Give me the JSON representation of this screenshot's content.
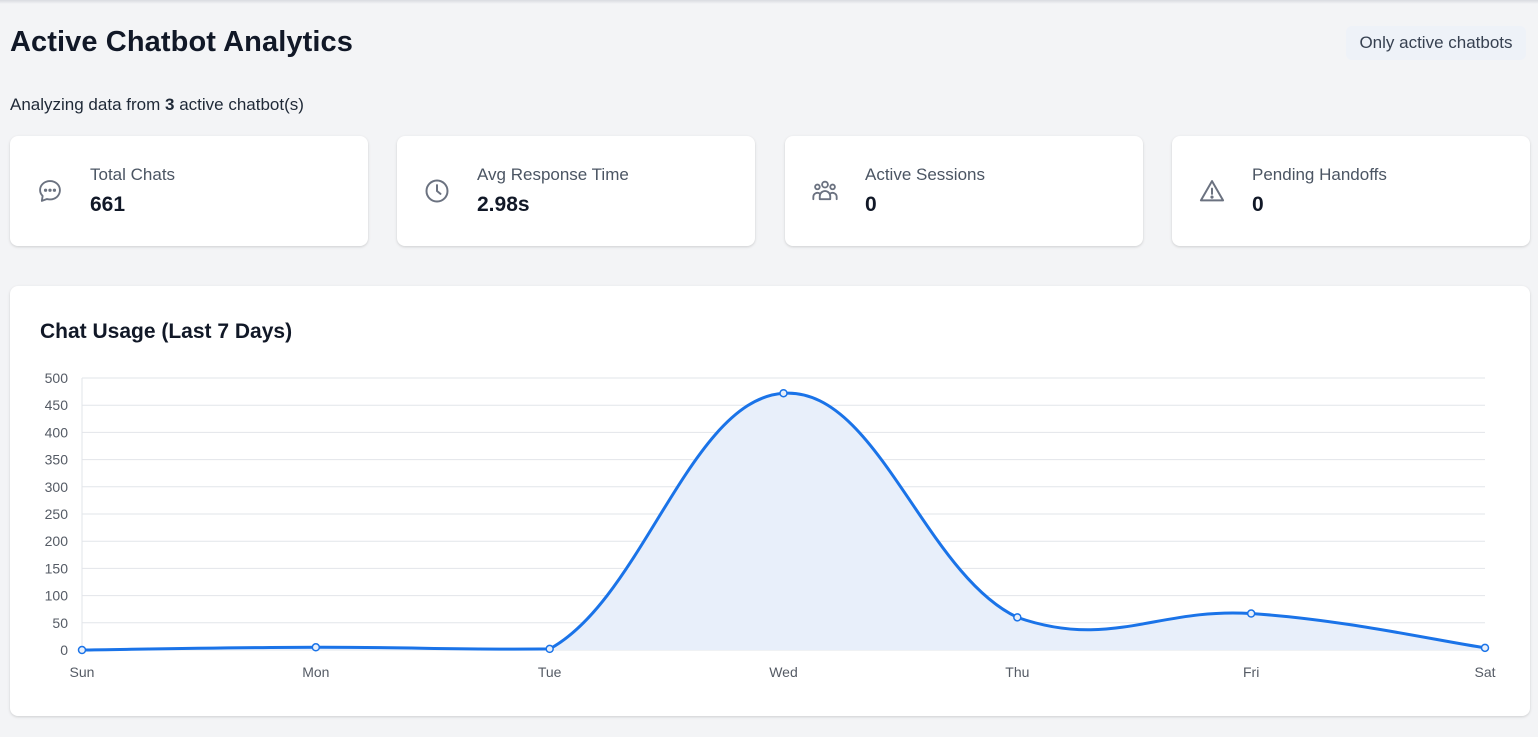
{
  "header": {
    "title": "Active Chatbot Analytics",
    "filter_badge": "Only active chatbots",
    "subtitle_prefix": "Analyzing data from",
    "subtitle_count": "3",
    "subtitle_suffix": "active chatbot(s)"
  },
  "stats": [
    {
      "label": "Total Chats",
      "value": "661",
      "icon": "chat-bubble-icon"
    },
    {
      "label": "Avg Response Time",
      "value": "2.98s",
      "icon": "clock-icon"
    },
    {
      "label": "Active Sessions",
      "value": "0",
      "icon": "users-icon"
    },
    {
      "label": "Pending Handoffs",
      "value": "0",
      "icon": "warning-icon"
    }
  ],
  "colors": {
    "line": "#1a73e8",
    "fill": "#e8effa",
    "grid": "#e2e5ea",
    "background": "#f3f4f6"
  },
  "chart_data": {
    "type": "area",
    "title": "Chat Usage (Last 7 Days)",
    "categories": [
      "Sun",
      "Mon",
      "Tue",
      "Wed",
      "Thu",
      "Fri",
      "Sat"
    ],
    "series": [
      {
        "values": [
          0,
          5,
          2,
          472,
          60,
          67,
          4
        ]
      }
    ],
    "ylim": [
      0,
      500
    ],
    "yticks": [
      0,
      50,
      100,
      150,
      200,
      250,
      300,
      350,
      400,
      450,
      500
    ],
    "grid": true,
    "smooth": true
  }
}
